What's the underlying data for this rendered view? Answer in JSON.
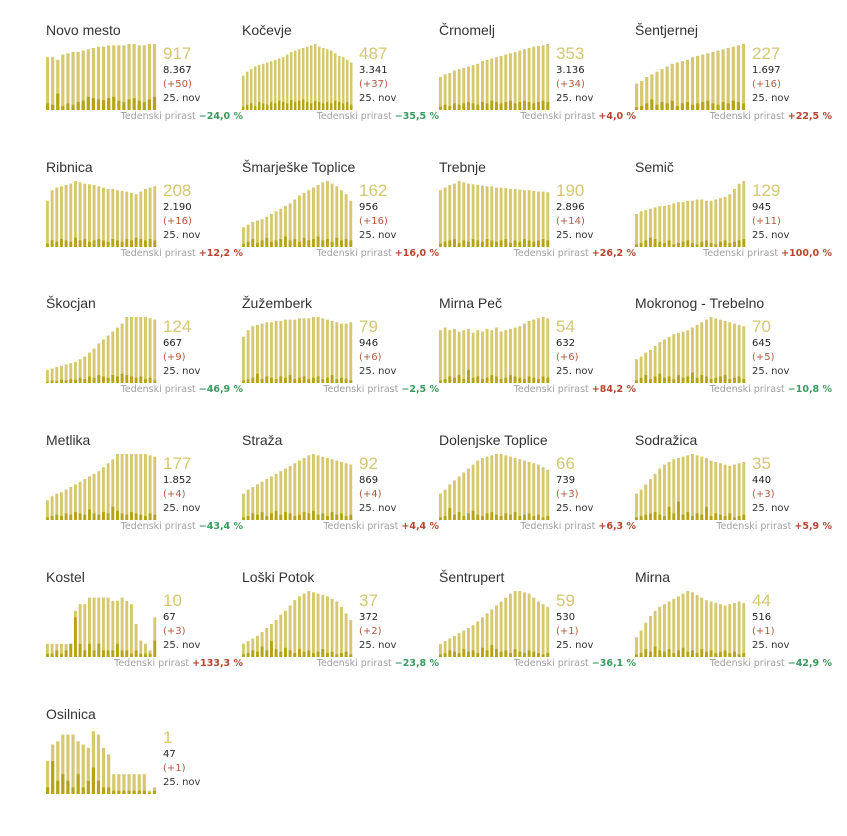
{
  "colors": {
    "active_bar": "#d6c86e",
    "new_bar": "#b5a417",
    "active_text": "#d4c772",
    "growth_up": "#b5452f",
    "growth_down": "#3a9a5e"
  },
  "growth_label": "Tedenski prirast",
  "date": "25. nov",
  "chart_data": [
    {
      "type": "bar",
      "name": "Novo mesto",
      "active": "917",
      "total": "8.367",
      "delta": "(+50)",
      "growth": "−24,0 %",
      "trend": "down",
      "active_series": [
        0.8,
        0.8,
        0.76,
        0.84,
        0.86,
        0.88,
        0.88,
        0.9,
        0.92,
        0.94,
        0.96,
        0.96,
        0.98,
        0.98,
        0.98,
        0.98,
        1.0,
        1.0,
        0.98,
        0.98,
        1.0,
        1.0
      ],
      "new_series": [
        0.1,
        0.08,
        0.25,
        0.06,
        0.1,
        0.08,
        0.12,
        0.14,
        0.2,
        0.18,
        0.16,
        0.15,
        0.18,
        0.2,
        0.14,
        0.12,
        0.16,
        0.18,
        0.14,
        0.12,
        0.16,
        0.2
      ]
    },
    {
      "type": "bar",
      "name": "Kočevje",
      "active": "487",
      "total": "3.341",
      "delta": "(+37)",
      "growth": "−35,5 %",
      "trend": "down",
      "active_series": [
        0.52,
        0.58,
        0.62,
        0.66,
        0.68,
        0.7,
        0.72,
        0.74,
        0.76,
        0.78,
        0.8,
        0.84,
        0.88,
        0.9,
        0.92,
        0.94,
        0.96,
        0.98,
        1.0,
        0.96,
        0.94,
        0.92,
        0.9,
        0.86,
        0.82,
        0.8,
        0.76,
        0.72
      ],
      "new_series": [
        0.05,
        0.08,
        0.1,
        0.06,
        0.12,
        0.1,
        0.08,
        0.12,
        0.1,
        0.14,
        0.12,
        0.1,
        0.15,
        0.12,
        0.14,
        0.16,
        0.12,
        0.1,
        0.14,
        0.12,
        0.1,
        0.12,
        0.1,
        0.14,
        0.12,
        0.1,
        0.12,
        0.08
      ]
    },
    {
      "type": "bar",
      "name": "Črnomelj",
      "active": "353",
      "total": "3.136",
      "delta": "(+34)",
      "growth": "+4,0 %",
      "trend": "up",
      "active_series": [
        0.5,
        0.54,
        0.56,
        0.6,
        0.62,
        0.64,
        0.66,
        0.68,
        0.7,
        0.74,
        0.76,
        0.78,
        0.8,
        0.82,
        0.84,
        0.86,
        0.88,
        0.9,
        0.92,
        0.94,
        0.96,
        0.97,
        0.98,
        1.0
      ],
      "new_series": [
        0.05,
        0.08,
        0.06,
        0.1,
        0.08,
        0.1,
        0.12,
        0.1,
        0.08,
        0.12,
        0.1,
        0.14,
        0.12,
        0.1,
        0.12,
        0.14,
        0.1,
        0.12,
        0.14,
        0.12,
        0.1,
        0.12,
        0.14,
        0.12
      ]
    },
    {
      "type": "bar",
      "name": "Šentjernej",
      "active": "227",
      "total": "1.697",
      "delta": "(+16)",
      "growth": "+22,5 %",
      "trend": "up",
      "active_series": [
        0.4,
        0.44,
        0.5,
        0.54,
        0.58,
        0.62,
        0.66,
        0.7,
        0.72,
        0.74,
        0.76,
        0.8,
        0.82,
        0.84,
        0.86,
        0.88,
        0.9,
        0.92,
        0.94,
        0.96,
        0.98,
        1.0
      ],
      "new_series": [
        0.04,
        0.06,
        0.1,
        0.16,
        0.08,
        0.12,
        0.1,
        0.14,
        0.06,
        0.1,
        0.12,
        0.08,
        0.1,
        0.12,
        0.14,
        0.1,
        0.08,
        0.12,
        0.1,
        0.14,
        0.12,
        0.1
      ]
    },
    {
      "type": "bar",
      "name": "Ribnica",
      "active": "208",
      "total": "2.190",
      "delta": "(+16)",
      "growth": "+12,2 %",
      "trend": "up",
      "active_series": [
        0.7,
        0.86,
        0.9,
        0.92,
        0.94,
        0.96,
        1.0,
        0.98,
        0.96,
        0.95,
        0.94,
        0.92,
        0.9,
        0.88,
        0.88,
        0.86,
        0.85,
        0.84,
        0.82,
        0.8,
        0.84,
        0.88,
        0.9,
        0.92
      ],
      "new_series": [
        0.05,
        0.1,
        0.08,
        0.12,
        0.1,
        0.08,
        0.14,
        0.1,
        0.12,
        0.08,
        0.1,
        0.12,
        0.1,
        0.08,
        0.12,
        0.1,
        0.08,
        0.12,
        0.1,
        0.14,
        0.12,
        0.1,
        0.12,
        0.1
      ]
    },
    {
      "type": "bar",
      "name": "Šmarješke Toplice",
      "active": "162",
      "total": "956",
      "delta": "(+16)",
      "growth": "+16,0 %",
      "trend": "up",
      "active_series": [
        0.3,
        0.34,
        0.38,
        0.4,
        0.42,
        0.46,
        0.5,
        0.54,
        0.58,
        0.62,
        0.66,
        0.72,
        0.78,
        0.82,
        0.86,
        0.9,
        0.94,
        0.98,
        1.0,
        0.96,
        0.92,
        0.86,
        0.8,
        0.7
      ],
      "new_series": [
        0.05,
        0.08,
        0.12,
        0.06,
        0.1,
        0.14,
        0.08,
        0.1,
        0.12,
        0.16,
        0.1,
        0.12,
        0.08,
        0.14,
        0.1,
        0.12,
        0.16,
        0.1,
        0.12,
        0.08,
        0.14,
        0.1,
        0.12,
        0.1
      ]
    },
    {
      "type": "bar",
      "name": "Trebnje",
      "active": "190",
      "total": "2.896",
      "delta": "(+14)",
      "growth": "+26,2 %",
      "trend": "up",
      "active_series": [
        0.86,
        0.9,
        0.94,
        0.96,
        1.0,
        0.98,
        0.96,
        0.95,
        0.94,
        0.93,
        0.92,
        0.92,
        0.9,
        0.9,
        0.89,
        0.88,
        0.88,
        0.87,
        0.86,
        0.86,
        0.85,
        0.84,
        0.84,
        0.83
      ],
      "new_series": [
        0.05,
        0.08,
        0.1,
        0.12,
        0.06,
        0.1,
        0.08,
        0.12,
        0.1,
        0.08,
        0.12,
        0.1,
        0.08,
        0.1,
        0.12,
        0.06,
        0.1,
        0.08,
        0.12,
        0.1,
        0.08,
        0.1,
        0.12,
        0.1
      ]
    },
    {
      "type": "bar",
      "name": "Semič",
      "active": "129",
      "total": "945",
      "delta": "(+11)",
      "growth": "+100,0 %",
      "trend": "up",
      "active_series": [
        0.5,
        0.54,
        0.56,
        0.58,
        0.6,
        0.62,
        0.62,
        0.64,
        0.66,
        0.68,
        0.68,
        0.7,
        0.7,
        0.72,
        0.72,
        0.7,
        0.7,
        0.72,
        0.74,
        0.76,
        0.8,
        0.88,
        0.96,
        1.0
      ],
      "new_series": [
        0.04,
        0.06,
        0.1,
        0.14,
        0.12,
        0.08,
        0.06,
        0.1,
        0.04,
        0.06,
        0.08,
        0.1,
        0.06,
        0.04,
        0.08,
        0.1,
        0.06,
        0.04,
        0.08,
        0.1,
        0.06,
        0.08,
        0.1,
        0.12
      ]
    },
    {
      "type": "bar",
      "name": "Škocjan",
      "active": "124",
      "total": "667",
      "delta": "(+9)",
      "growth": "−46,9 %",
      "trend": "down",
      "active_series": [
        0.2,
        0.22,
        0.24,
        0.26,
        0.28,
        0.3,
        0.32,
        0.36,
        0.4,
        0.46,
        0.52,
        0.6,
        0.66,
        0.72,
        0.78,
        0.84,
        0.9,
        1.0,
        1.0,
        1.0,
        1.0,
        1.0,
        0.98,
        0.96
      ],
      "new_series": [
        0.02,
        0.04,
        0.03,
        0.05,
        0.04,
        0.06,
        0.05,
        0.08,
        0.06,
        0.1,
        0.08,
        0.12,
        0.1,
        0.08,
        0.12,
        0.1,
        0.14,
        0.12,
        0.1,
        0.08,
        0.1,
        0.06,
        0.08,
        0.04
      ]
    },
    {
      "type": "bar",
      "name": "Žužemberk",
      "active": "79",
      "total": "946",
      "delta": "(+6)",
      "growth": "−2,5 %",
      "trend": "down",
      "active_series": [
        0.7,
        0.8,
        0.86,
        0.88,
        0.9,
        0.92,
        0.92,
        0.94,
        0.94,
        0.96,
        0.96,
        0.96,
        0.98,
        0.98,
        0.98,
        1.0,
        1.0,
        0.98,
        0.96,
        0.94,
        0.92,
        0.9,
        0.9,
        0.92
      ],
      "new_series": [
        0.04,
        0.06,
        0.08,
        0.14,
        0.06,
        0.1,
        0.08,
        0.06,
        0.1,
        0.08,
        0.12,
        0.06,
        0.08,
        0.1,
        0.06,
        0.08,
        0.1,
        0.06,
        0.08,
        0.12,
        0.06,
        0.08,
        0.06,
        0.04
      ]
    },
    {
      "type": "bar",
      "name": "Mirna Peč",
      "active": "54",
      "total": "632",
      "delta": "(+6)",
      "growth": "+84,2 %",
      "trend": "up",
      "active_series": [
        0.8,
        0.84,
        0.8,
        0.82,
        0.78,
        0.8,
        0.82,
        0.76,
        0.8,
        0.78,
        0.82,
        0.8,
        0.84,
        0.78,
        0.8,
        0.82,
        0.84,
        0.86,
        0.9,
        0.94,
        0.96,
        0.98,
        1.0,
        0.98
      ],
      "new_series": [
        0.04,
        0.06,
        0.1,
        0.08,
        0.12,
        0.06,
        0.2,
        0.08,
        0.1,
        0.06,
        0.08,
        0.12,
        0.1,
        0.06,
        0.08,
        0.12,
        0.1,
        0.08,
        0.06,
        0.1,
        0.08,
        0.06,
        0.1,
        0.08
      ]
    },
    {
      "type": "bar",
      "name": "Mokronog - Trebelno",
      "active": "70",
      "total": "645",
      "delta": "(+5)",
      "growth": "−10,8 %",
      "trend": "down",
      "active_series": [
        0.36,
        0.4,
        0.46,
        0.5,
        0.56,
        0.62,
        0.66,
        0.7,
        0.74,
        0.76,
        0.78,
        0.8,
        0.84,
        0.88,
        0.92,
        0.96,
        1.0,
        0.98,
        0.96,
        0.94,
        0.92,
        0.9,
        0.88,
        0.86
      ],
      "new_series": [
        0.04,
        0.08,
        0.12,
        0.06,
        0.1,
        0.14,
        0.08,
        0.1,
        0.06,
        0.12,
        0.08,
        0.1,
        0.16,
        0.08,
        0.12,
        0.1,
        0.06,
        0.08,
        0.1,
        0.12,
        0.06,
        0.08,
        0.1,
        0.06
      ]
    },
    {
      "type": "bar",
      "name": "Metlika",
      "active": "177",
      "total": "1.852",
      "delta": "(+4)",
      "growth": "−43,4 %",
      "trend": "down",
      "active_series": [
        0.3,
        0.36,
        0.4,
        0.42,
        0.46,
        0.5,
        0.54,
        0.58,
        0.62,
        0.66,
        0.7,
        0.74,
        0.8,
        0.86,
        0.92,
        1.0,
        1.0,
        1.0,
        1.0,
        1.0,
        1.0,
        1.0,
        0.98,
        0.96
      ],
      "new_series": [
        0.04,
        0.06,
        0.08,
        0.06,
        0.1,
        0.08,
        0.12,
        0.1,
        0.08,
        0.16,
        0.1,
        0.08,
        0.12,
        0.1,
        0.2,
        0.14,
        0.1,
        0.08,
        0.12,
        0.1,
        0.08,
        0.06,
        0.1,
        0.08
      ]
    },
    {
      "type": "bar",
      "name": "Straža",
      "active": "92",
      "total": "869",
      "delta": "(+4)",
      "growth": "+4,4 %",
      "trend": "up",
      "active_series": [
        0.4,
        0.46,
        0.5,
        0.54,
        0.58,
        0.62,
        0.66,
        0.7,
        0.74,
        0.78,
        0.82,
        0.86,
        0.9,
        0.94,
        0.98,
        1.0,
        0.98,
        0.96,
        0.94,
        0.92,
        0.9,
        0.88,
        0.86,
        0.84
      ],
      "new_series": [
        0.04,
        0.06,
        0.1,
        0.08,
        0.12,
        0.06,
        0.1,
        0.14,
        0.08,
        0.12,
        0.1,
        0.06,
        0.08,
        0.12,
        0.1,
        0.14,
        0.08,
        0.1,
        0.06,
        0.12,
        0.08,
        0.1,
        0.06,
        0.08
      ]
    },
    {
      "type": "bar",
      "name": "Dolenjske Toplice",
      "active": "66",
      "total": "739",
      "delta": "(+3)",
      "growth": "+6,3 %",
      "trend": "up",
      "active_series": [
        0.4,
        0.46,
        0.54,
        0.6,
        0.66,
        0.72,
        0.78,
        0.84,
        0.9,
        0.94,
        0.96,
        0.98,
        1.0,
        1.0,
        0.98,
        0.96,
        0.94,
        0.92,
        0.9,
        0.88,
        0.86,
        0.84,
        0.8,
        0.76
      ],
      "new_series": [
        0.04,
        0.06,
        0.18,
        0.08,
        0.12,
        0.06,
        0.1,
        0.14,
        0.08,
        0.06,
        0.1,
        0.12,
        0.08,
        0.06,
        0.1,
        0.08,
        0.12,
        0.06,
        0.08,
        0.1,
        0.06,
        0.08,
        0.04,
        0.06
      ]
    },
    {
      "type": "bar",
      "name": "Sodražica",
      "active": "35",
      "total": "440",
      "delta": "(+3)",
      "growth": "+5,9 %",
      "trend": "up",
      "active_series": [
        0.4,
        0.46,
        0.54,
        0.62,
        0.7,
        0.78,
        0.84,
        0.88,
        0.92,
        0.94,
        0.96,
        0.98,
        1.0,
        0.98,
        0.96,
        0.94,
        0.9,
        0.88,
        0.86,
        0.84,
        0.82,
        0.84,
        0.86,
        0.88
      ],
      "new_series": [
        0.04,
        0.06,
        0.08,
        0.1,
        0.12,
        0.08,
        0.06,
        0.2,
        0.1,
        0.28,
        0.08,
        0.12,
        0.06,
        0.1,
        0.08,
        0.2,
        0.06,
        0.1,
        0.08,
        0.06,
        0.1,
        0.04,
        0.06,
        0.08
      ]
    },
    {
      "type": "bar",
      "name": "Kostel",
      "active": "10",
      "total": "67",
      "delta": "(+3)",
      "growth": "+133,3 %",
      "trend": "up",
      "active_series": [
        0.2,
        0.2,
        0.2,
        0.2,
        0.2,
        0.2,
        0.7,
        0.8,
        0.8,
        0.9,
        0.9,
        0.9,
        0.9,
        0.9,
        0.85,
        0.85,
        0.9,
        0.85,
        0.8,
        0.5,
        0.25,
        0.2,
        0.1,
        0.6
      ],
      "new_series": [
        0.05,
        0.05,
        0.1,
        0.05,
        0.1,
        0.2,
        0.6,
        0.2,
        0.1,
        0.2,
        0.1,
        0.2,
        0.1,
        0.1,
        0.1,
        0.2,
        0.1,
        0.1,
        0.05,
        0.1,
        0.05,
        0.05,
        0.05,
        0.25
      ]
    },
    {
      "type": "bar",
      "name": "Loški Potok",
      "active": "37",
      "total": "372",
      "delta": "(+2)",
      "growth": "−23,8 %",
      "trend": "down",
      "active_series": [
        0.2,
        0.24,
        0.28,
        0.32,
        0.38,
        0.44,
        0.5,
        0.56,
        0.64,
        0.7,
        0.78,
        0.86,
        0.92,
        0.96,
        1.0,
        0.98,
        0.96,
        0.94,
        0.92,
        0.88,
        0.84,
        0.76,
        0.66,
        0.56
      ],
      "new_series": [
        0.04,
        0.06,
        0.1,
        0.08,
        0.16,
        0.1,
        0.24,
        0.12,
        0.08,
        0.14,
        0.1,
        0.06,
        0.12,
        0.08,
        0.1,
        0.06,
        0.08,
        0.12,
        0.06,
        0.08,
        0.04,
        0.06,
        0.08,
        0.04
      ]
    },
    {
      "type": "bar",
      "name": "Šentrupert",
      "active": "59",
      "total": "530",
      "delta": "(+1)",
      "growth": "−36,1 %",
      "trend": "down",
      "active_series": [
        0.2,
        0.24,
        0.28,
        0.32,
        0.36,
        0.4,
        0.44,
        0.48,
        0.54,
        0.6,
        0.66,
        0.72,
        0.78,
        0.84,
        0.9,
        0.96,
        1.0,
        1.0,
        0.98,
        0.96,
        0.9,
        0.84,
        0.8,
        0.76
      ],
      "new_series": [
        0.04,
        0.06,
        0.1,
        0.08,
        0.06,
        0.12,
        0.08,
        0.1,
        0.06,
        0.14,
        0.1,
        0.18,
        0.12,
        0.08,
        0.1,
        0.06,
        0.12,
        0.08,
        0.06,
        0.1,
        0.08,
        0.06,
        0.04,
        0.06
      ]
    },
    {
      "type": "bar",
      "name": "Mirna",
      "active": "44",
      "total": "516",
      "delta": "(+1)",
      "growth": "−42,9 %",
      "trend": "down",
      "active_series": [
        0.3,
        0.4,
        0.52,
        0.62,
        0.7,
        0.76,
        0.8,
        0.84,
        0.88,
        0.92,
        0.96,
        1.0,
        0.98,
        0.94,
        0.9,
        0.86,
        0.84,
        0.82,
        0.8,
        0.78,
        0.8,
        0.82,
        0.84,
        0.82
      ],
      "new_series": [
        0.04,
        0.06,
        0.12,
        0.08,
        0.16,
        0.1,
        0.08,
        0.12,
        0.06,
        0.1,
        0.14,
        0.08,
        0.1,
        0.06,
        0.12,
        0.08,
        0.1,
        0.06,
        0.08,
        0.1,
        0.06,
        0.08,
        0.04,
        0.06
      ]
    },
    {
      "type": "bar",
      "name": "Osilnica",
      "active": "1",
      "total": "47",
      "delta": "(+1)",
      "growth": "",
      "active_series": [
        0.5,
        0.75,
        0.8,
        0.9,
        0.9,
        0.9,
        0.8,
        0.75,
        0.7,
        0.95,
        0.9,
        0.7,
        0.6,
        0.3,
        0.3,
        0.3,
        0.3,
        0.3,
        0.3,
        0.3,
        0.05,
        0.1
      ],
      "new_series": [
        0.1,
        0.5,
        0.2,
        0.3,
        0.2,
        0.1,
        0.3,
        0.1,
        0.2,
        0.4,
        0.2,
        0.1,
        0.1,
        0.05,
        0.05,
        0.05,
        0.05,
        0.05,
        0.05,
        0.05,
        0.02,
        0.05
      ]
    }
  ]
}
